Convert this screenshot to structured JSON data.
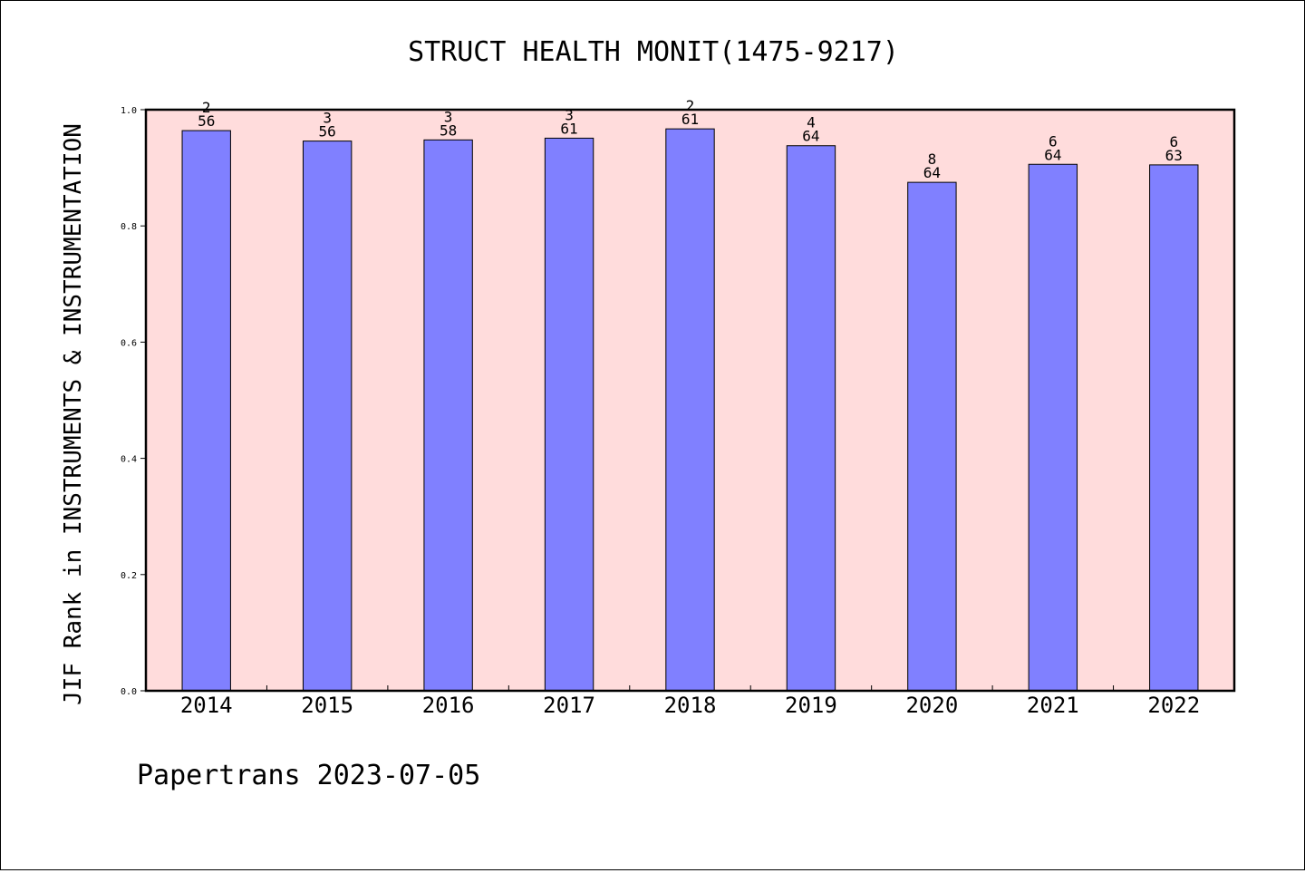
{
  "chart_data": {
    "type": "bar",
    "title": "STRUCT HEALTH MONIT(1475-9217)",
    "ylabel": "JIF Rank in INSTRUMENTS & INSTRUMENTATION",
    "xlabel": "",
    "categories": [
      "2014",
      "2015",
      "2016",
      "2017",
      "2018",
      "2019",
      "2020",
      "2021",
      "2022"
    ],
    "values": [
      0.964,
      0.946,
      0.948,
      0.951,
      0.967,
      0.938,
      0.875,
      0.906,
      0.905
    ],
    "ranks": [
      "2",
      "3",
      "3",
      "3",
      "2",
      "4",
      "8",
      "6",
      "6"
    ],
    "totals": [
      "56",
      "56",
      "58",
      "61",
      "61",
      "64",
      "64",
      "64",
      "63"
    ],
    "ylim": [
      0,
      1.0
    ],
    "yticks": [
      "0.0",
      "0.2",
      "0.4",
      "0.6",
      "0.8",
      "1.0"
    ],
    "grid": false,
    "colors": {
      "bar": "#8080ff",
      "plot_bg": "#ffdcdc",
      "bar_edge": "#000000"
    }
  },
  "footer": "Papertrans 2023-07-05"
}
